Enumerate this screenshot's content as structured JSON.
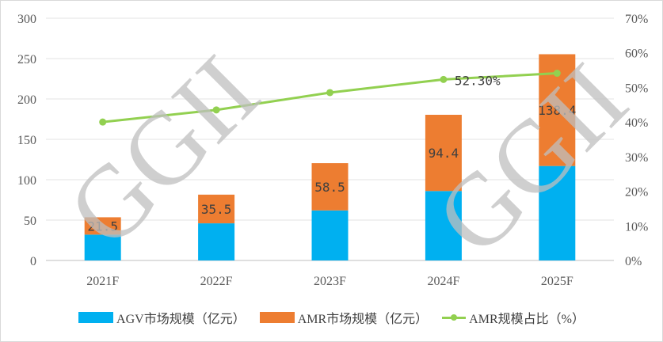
{
  "chart_data": {
    "type": "bar",
    "stacked": true,
    "categories": [
      "2021F",
      "2022F",
      "2023F",
      "2024F",
      "2025F"
    ],
    "series": [
      {
        "name": "AGV市场规模（亿元）",
        "type": "bar",
        "axis": "left",
        "color": "#00b0f0",
        "values": [
          32,
          46,
          62,
          86,
          117
        ]
      },
      {
        "name": "AMR市场规模（亿元）",
        "type": "bar",
        "axis": "left",
        "color": "#ed7d31",
        "values": [
          21.5,
          35.5,
          58.5,
          94.4,
          138.4
        ],
        "labels": [
          "21.5",
          "35.5",
          "58.5",
          "94.4",
          "138.4"
        ]
      },
      {
        "name": "AMR规模占比（%）",
        "type": "line",
        "axis": "right",
        "color": "#92d050",
        "values": [
          40,
          43.5,
          48.5,
          52.3,
          54.1
        ],
        "labels": [
          "",
          "",
          "",
          "52.30%",
          ""
        ]
      }
    ],
    "y_left": {
      "min": 0,
      "max": 300,
      "ticks": [
        "0",
        "50",
        "100",
        "150",
        "200",
        "250",
        "300"
      ]
    },
    "y_right": {
      "min": 0,
      "max": 70,
      "ticks": [
        "0%",
        "10%",
        "20%",
        "30%",
        "40%",
        "50%",
        "60%",
        "70%"
      ]
    },
    "grid": true,
    "legend_position": "bottom"
  },
  "watermark": "GGII"
}
